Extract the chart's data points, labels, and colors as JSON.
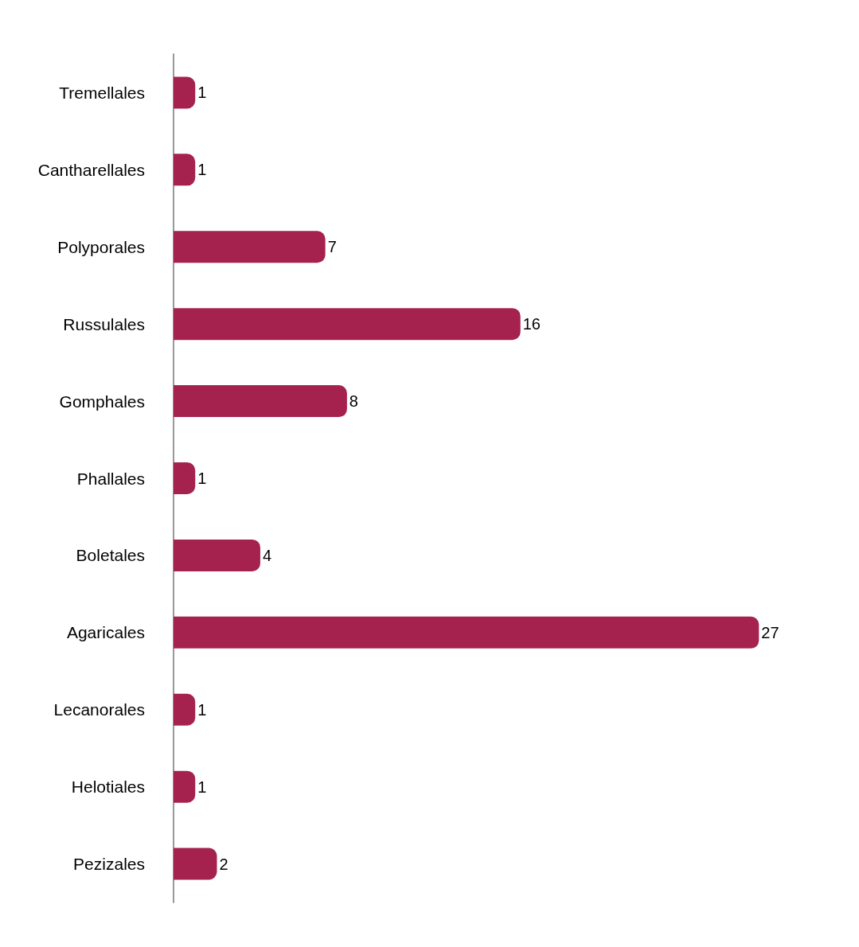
{
  "chart_data": {
    "type": "bar",
    "orientation": "horizontal",
    "categories": [
      "Tremellales",
      "Cantharellales",
      "Polyporales",
      "Russulales",
      "Gomphales",
      "Phallales",
      "Boletales",
      "Agaricales",
      "Lecanorales",
      "Helotiales",
      "Pezizales"
    ],
    "values": [
      1,
      1,
      7,
      16,
      8,
      1,
      4,
      27,
      1,
      1,
      2
    ],
    "color": "#a5214e",
    "data_labels": true,
    "tick_labels": "y"
  }
}
